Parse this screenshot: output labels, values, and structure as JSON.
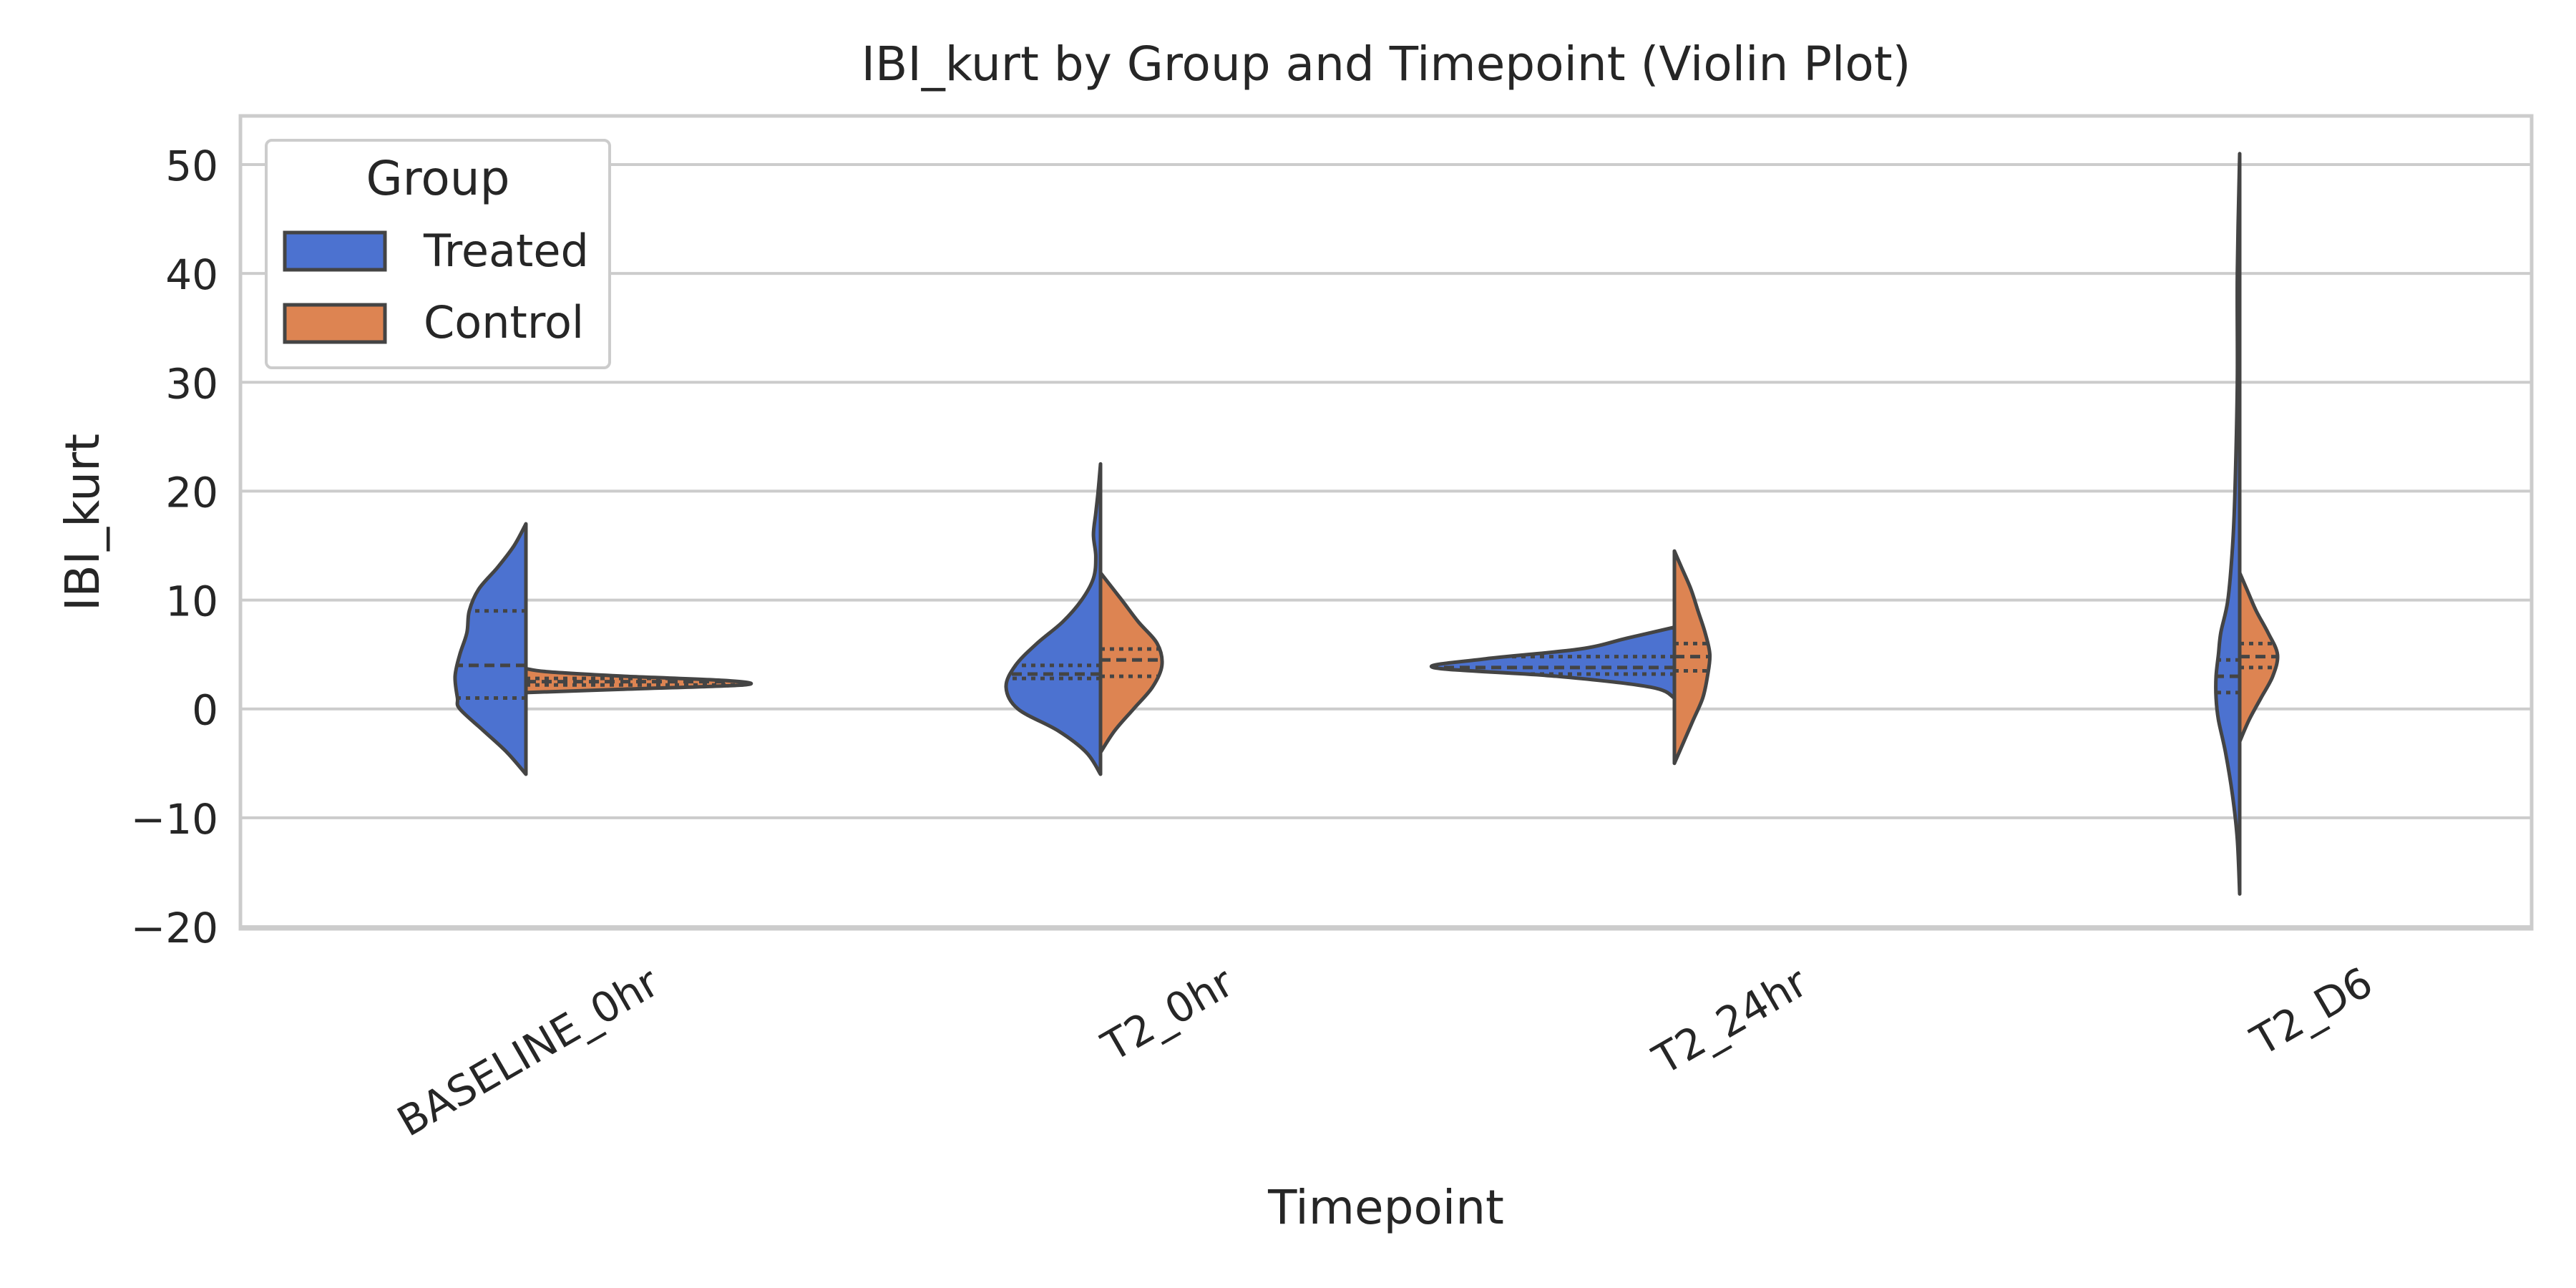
{
  "chart_data": {
    "type": "violin",
    "title": "IBI_kurt by Group and Timepoint (Violin Plot)",
    "xlabel": "Timepoint",
    "ylabel": "IBI_kurt",
    "ylim": [
      -20,
      55
    ],
    "yticks": [
      -20,
      -10,
      0,
      10,
      20,
      30,
      40,
      50
    ],
    "ytick_labels": [
      "−20",
      "−10",
      "0",
      "10",
      "20",
      "30",
      "40",
      "50"
    ],
    "categories": [
      "BASELINE_0hr",
      "T2_0hr",
      "T2_24hr",
      "T2_D6"
    ],
    "grid": true,
    "split": true,
    "legend": {
      "title": "Group",
      "placement": "top-left",
      "entries": [
        {
          "name": "Treated",
          "color": "#4c72d0"
        },
        {
          "name": "Control",
          "color": "#dd8452"
        }
      ]
    },
    "series": [
      {
        "name": "Treated",
        "color": "#4c72d0",
        "side": "left",
        "violins": [
          {
            "profile": [
              [
                -6,
                0.0
              ],
              [
                -4,
                0.08
              ],
              [
                -2,
                0.18
              ],
              [
                0,
                0.28
              ],
              [
                1,
                0.29
              ],
              [
                3,
                0.3
              ],
              [
                5,
                0.28
              ],
              [
                7,
                0.25
              ],
              [
                9,
                0.24
              ],
              [
                11,
                0.2
              ],
              [
                13,
                0.12
              ],
              [
                15,
                0.05
              ],
              [
                17,
                0.0
              ]
            ],
            "quartiles": [
              1.0,
              4.0,
              9.0
            ]
          },
          {
            "profile": [
              [
                -6,
                0.0
              ],
              [
                -4,
                0.06
              ],
              [
                -2,
                0.18
              ],
              [
                0,
                0.35
              ],
              [
                2,
                0.4
              ],
              [
                4,
                0.36
              ],
              [
                6,
                0.27
              ],
              [
                8,
                0.16
              ],
              [
                10,
                0.08
              ],
              [
                12,
                0.03
              ],
              [
                14,
                0.02
              ],
              [
                16,
                0.03
              ],
              [
                18,
                0.02
              ],
              [
                20,
                0.01
              ],
              [
                22.5,
                0.0
              ]
            ],
            "quartiles": [
              2.8,
              3.2,
              4.0
            ]
          },
          {
            "profile": [
              [
                1,
                0.0
              ],
              [
                2,
                0.1
              ],
              [
                3,
                0.5
              ],
              [
                3.8,
                1.02
              ],
              [
                4.6,
                0.8
              ],
              [
                5.5,
                0.4
              ],
              [
                6.5,
                0.2
              ],
              [
                7.5,
                0.0
              ]
            ],
            "quartiles": [
              3.2,
              3.8,
              4.8
            ]
          },
          {
            "profile": [
              [
                -17,
                0.0
              ],
              [
                -12,
                0.01
              ],
              [
                -8,
                0.03
              ],
              [
                -4,
                0.06
              ],
              [
                -1,
                0.09
              ],
              [
                1,
                0.1
              ],
              [
                3,
                0.1
              ],
              [
                5,
                0.09
              ],
              [
                7,
                0.08
              ],
              [
                10,
                0.05
              ],
              [
                15,
                0.03
              ],
              [
                20,
                0.02
              ],
              [
                30,
                0.01
              ],
              [
                40,
                0.01
              ],
              [
                51,
                0.0
              ]
            ],
            "quartiles": [
              1.5,
              3.0,
              4.5
            ]
          }
        ]
      },
      {
        "name": "Control",
        "color": "#dd8452",
        "side": "right",
        "violins": [
          {
            "profile": [
              [
                1.5,
                0.0
              ],
              [
                1.8,
                0.4
              ],
              [
                2.2,
                0.92
              ],
              [
                2.6,
                0.85
              ],
              [
                3.0,
                0.42
              ],
              [
                3.4,
                0.1
              ],
              [
                3.7,
                0.0
              ]
            ],
            "quartiles": [
              2.2,
              2.5,
              2.8
            ]
          },
          {
            "profile": [
              [
                -4,
                0.0
              ],
              [
                -2,
                0.06
              ],
              [
                0,
                0.14
              ],
              [
                2,
                0.22
              ],
              [
                4,
                0.26
              ],
              [
                6,
                0.24
              ],
              [
                8,
                0.16
              ],
              [
                10,
                0.09
              ],
              [
                12.5,
                0.0
              ]
            ],
            "quartiles": [
              3.0,
              4.5,
              5.5
            ]
          },
          {
            "profile": [
              [
                -5,
                0.0
              ],
              [
                -3,
                0.04
              ],
              [
                -1,
                0.08
              ],
              [
                1,
                0.12
              ],
              [
                3,
                0.14
              ],
              [
                5,
                0.15
              ],
              [
                7,
                0.13
              ],
              [
                9,
                0.1
              ],
              [
                11,
                0.07
              ],
              [
                13,
                0.03
              ],
              [
                14.5,
                0.0
              ]
            ],
            "quartiles": [
              3.5,
              4.8,
              6.0
            ]
          },
          {
            "profile": [
              [
                -3,
                0.0
              ],
              [
                -1,
                0.04
              ],
              [
                1,
                0.09
              ],
              [
                3,
                0.14
              ],
              [
                5,
                0.16
              ],
              [
                7,
                0.12
              ],
              [
                9,
                0.07
              ],
              [
                11,
                0.03
              ],
              [
                12.5,
                0.0
              ]
            ],
            "quartiles": [
              3.8,
              4.8,
              6.0
            ]
          }
        ]
      }
    ]
  }
}
